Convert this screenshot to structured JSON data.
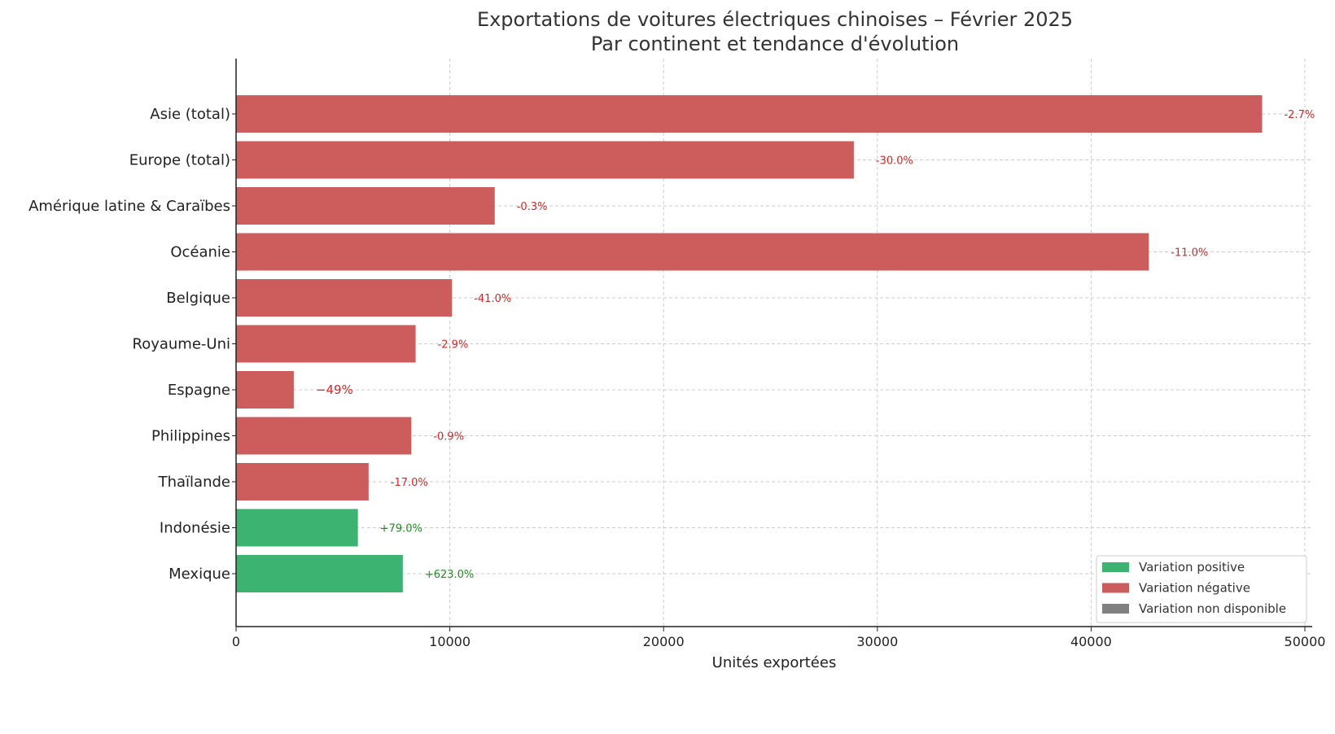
{
  "chart_data": {
    "type": "bar",
    "orientation": "horizontal",
    "title": "Exportations de voitures électriques chinoises – Février 2025",
    "subtitle": "Par continent et tendance d'évolution",
    "xlabel": "Unités exportées",
    "ylabel": "",
    "xlim": [
      0,
      50000
    ],
    "xticks": [
      "0",
      "10000",
      "20000",
      "30000",
      "40000",
      "50000"
    ],
    "grid": true,
    "legend_position": "bottom-right",
    "categories": [
      "Asie (total)",
      "Europe (total)",
      "Amérique latine & Caraïbes",
      "Océanie",
      "Belgique",
      "Royaume-Uni",
      "Espagne",
      "Philippines",
      "Thaïlande",
      "Indonésie",
      "Mexique"
    ],
    "values": [
      48000,
      28900,
      12100,
      42700,
      10100,
      8400,
      2700,
      8200,
      6200,
      5700,
      7800
    ],
    "labels": [
      "-2.7%",
      "-30.0%",
      "-0.3%",
      "-11.0%",
      "-41.0%",
      "-2.9%",
      "−49%",
      "-0.9%",
      "-17.0%",
      "+79.0%",
      "+623.0%"
    ],
    "trend": [
      "negative",
      "negative",
      "negative",
      "negative",
      "negative",
      "negative",
      "negative",
      "negative",
      "negative",
      "positive",
      "positive"
    ],
    "legend": [
      {
        "key": "positive",
        "label": "Variation positive",
        "color": "#3cb371"
      },
      {
        "key": "negative",
        "label": "Variation négative",
        "color": "#cd5c5c"
      },
      {
        "key": "na",
        "label": "Variation non disponible",
        "color": "#808080"
      }
    ],
    "label_colors": {
      "positive": "#228b22",
      "negative": "#d62728"
    }
  }
}
